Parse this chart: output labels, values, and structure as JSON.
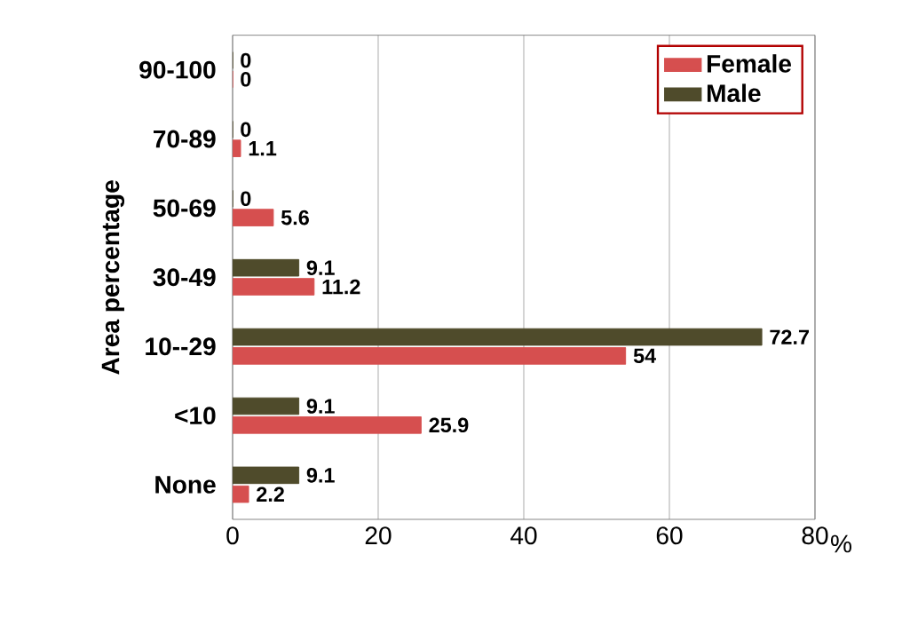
{
  "chart_data": {
    "type": "bar",
    "orientation": "horizontal",
    "xlabel": "%",
    "ylabel": "Area percentage",
    "categories": [
      "90-100",
      "70-89",
      "50-69",
      "30-49",
      "10--29",
      "<10",
      "None"
    ],
    "series": [
      {
        "name": "Female",
        "color": "#d64f4f",
        "values": [
          0,
          1.1,
          5.6,
          11.2,
          54,
          25.9,
          2.2
        ]
      },
      {
        "name": "Male",
        "color": "#4f4b2b",
        "values": [
          0,
          0,
          0,
          9.1,
          72.7,
          9.1,
          9.1
        ]
      }
    ],
    "xlim": [
      0,
      80
    ],
    "xticks": [
      0,
      20,
      40,
      60,
      80
    ],
    "grid": "x",
    "legend": "top right",
    "data_labels": true
  }
}
